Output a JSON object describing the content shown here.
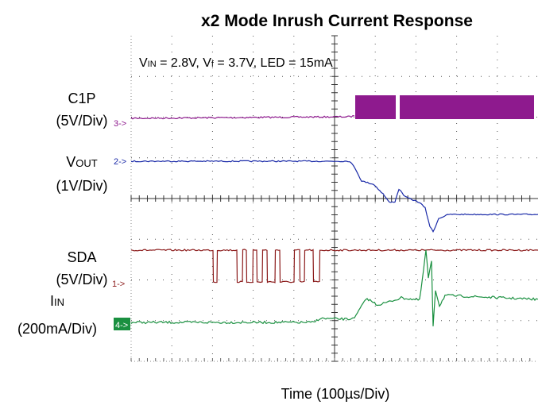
{
  "chart_data": {
    "type": "oscilloscope",
    "title": "x2 Mode Inrush Current Response",
    "annotation": [
      "V",
      "IN",
      " = 2.8V, V",
      "f",
      " = 3.7V, LED = 15mA"
    ],
    "xlabel": "Time (100µs/Div)",
    "channels": [
      {
        "name": [
          "C1P"
        ],
        "scale": "(5V/Div)",
        "marker": "3->",
        "color": "#8e1a8e"
      },
      {
        "name": [
          "V",
          "OUT"
        ],
        "scale": "(1V/Div)",
        "marker": "2->",
        "color": "#1a2aa8"
      },
      {
        "name": [
          "SDA"
        ],
        "scale": "(5V/Div)",
        "marker": "1->",
        "color": "#8b1a1a"
      },
      {
        "name": [
          "I",
          "IN"
        ],
        "scale": "(200mA/Div)",
        "marker": "4->",
        "color": "#1a9040"
      }
    ]
  }
}
